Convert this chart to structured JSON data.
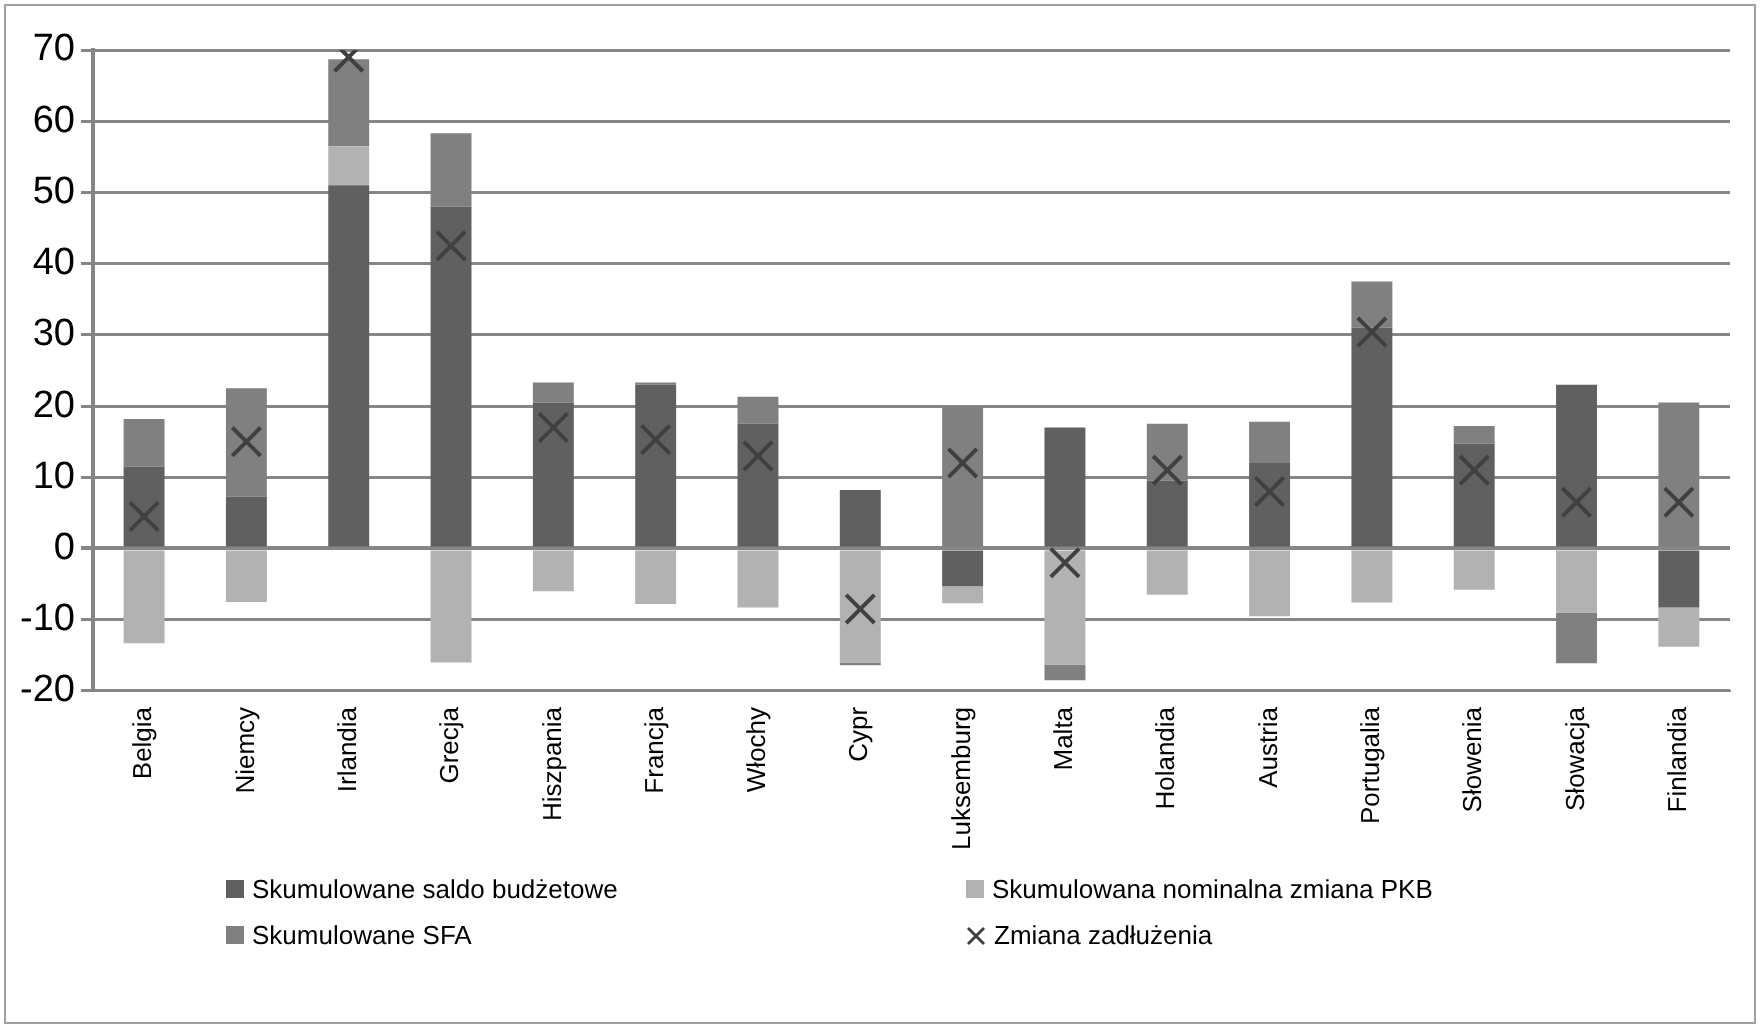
{
  "chart_data": {
    "type": "bar",
    "stacked": true,
    "categories": [
      "Belgia",
      "Niemcy",
      "Irlandia",
      "Grecja",
      "Hiszpania",
      "Francja",
      "Włochy",
      "Cypr",
      "Luksemburg",
      "Malta",
      "Holandia",
      "Austria",
      "Portugalia",
      "Słowenia",
      "Słowacja",
      "Finlandia"
    ],
    "series": [
      {
        "name": "Skumulowane saldo budżetowe",
        "color": "#606060",
        "values": [
          11.5,
          7.3,
          51,
          48,
          20.5,
          23,
          17.5,
          8.2,
          -5.3,
          17,
          9.5,
          12,
          31,
          14.7,
          23,
          -8.3
        ]
      },
      {
        "name": "Skumulowana nominalna zmiana PKB",
        "color": "#b2b2b2",
        "values": [
          -13.3,
          -7.5,
          5.5,
          -16,
          -6,
          -7.8,
          -8.3,
          -16,
          -2.4,
          -16.3,
          -6.5,
          -9.5,
          -7.6,
          -5.8,
          -9,
          -5.5
        ]
      },
      {
        "name": "Skumulowane SFA",
        "color": "#808080",
        "values": [
          6.7,
          15.2,
          12.2,
          10.3,
          2.8,
          0.3,
          3.8,
          -0.4,
          20,
          -2.2,
          8,
          5.8,
          6.5,
          2.5,
          -7.1,
          20.5
        ]
      },
      {
        "name": "Zmiana zadłużenia",
        "type": "scatter",
        "marker": "cross",
        "color": "#404040",
        "x": [
          "Belgia",
          "Niemcy",
          "Irlandia",
          "Grecja",
          "Hiszpania",
          "Francja",
          "Włochy",
          "Cypr",
          "Luksemburg",
          "Malta",
          "Holandia",
          "Austria",
          "Portugalia",
          "Słowenia",
          "Słowacja",
          "Finlandia"
        ],
        "values": [
          4.5,
          15,
          69,
          42.5,
          17,
          15.3,
          13,
          -8.5,
          12,
          -2,
          11,
          8,
          30.4,
          11,
          6.5,
          6.5
        ]
      }
    ],
    "ylim": [
      -20,
      70
    ],
    "yticks": [
      -20,
      -10,
      0,
      10,
      20,
      30,
      40,
      50,
      60,
      70
    ],
    "grid": "y",
    "legend": "bottom"
  }
}
